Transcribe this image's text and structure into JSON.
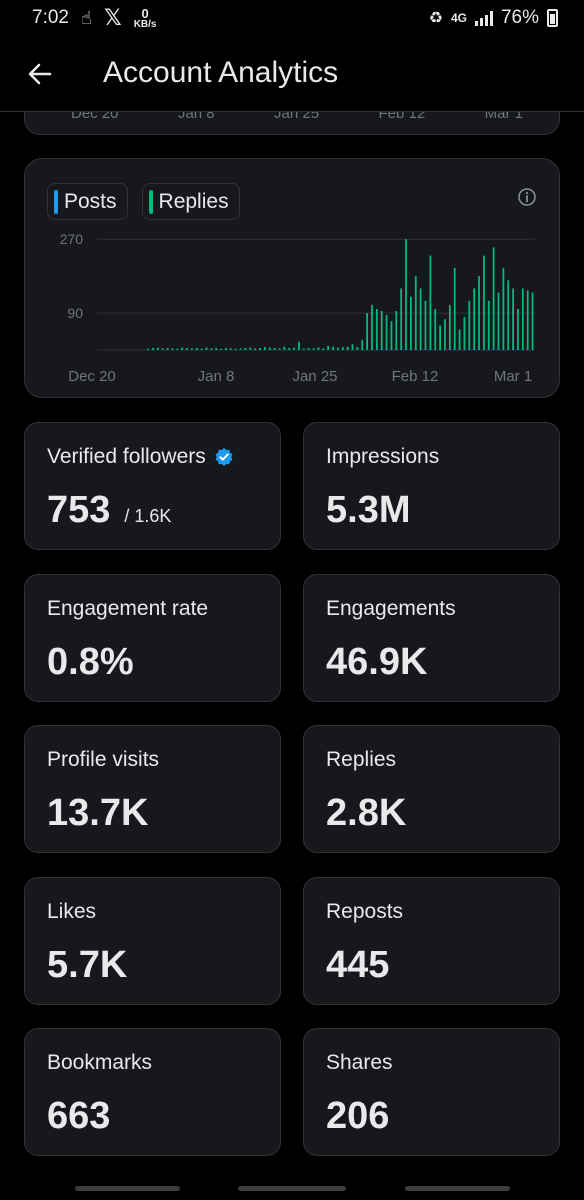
{
  "status": {
    "time": "7:02",
    "kb_value": "0",
    "kb_unit": "KB/s",
    "network": "4G",
    "battery": "76%"
  },
  "header": {
    "title": "Account Analytics"
  },
  "prev_chart": {
    "x_labels": [
      "Dec 20",
      "Jan 8",
      "Jan 25",
      "Feb 12",
      "Mar 1"
    ]
  },
  "chart_data": {
    "type": "bar",
    "legend": [
      "Posts",
      "Replies"
    ],
    "colors": {
      "posts": "#1d9bf0",
      "replies": "#00ba7c"
    },
    "x_tick_labels": [
      "Dec 20",
      "Jan 8",
      "Jan 25",
      "Feb 12",
      "Mar 1"
    ],
    "y_ticks": [
      90,
      270
    ],
    "ylim": [
      0,
      290
    ],
    "grid": true,
    "series": [
      {
        "name": "Posts",
        "values": [
          0,
          0,
          0,
          0,
          0,
          0,
          0,
          0,
          0,
          0,
          1,
          1,
          1,
          1,
          1,
          1,
          1,
          1,
          1,
          1,
          1,
          1,
          1,
          1,
          1,
          1,
          1,
          1,
          1,
          1,
          1,
          1,
          1,
          1,
          1,
          1,
          1,
          1,
          1,
          1,
          1,
          1,
          1,
          1,
          1,
          1,
          1,
          1,
          1,
          1,
          1,
          1,
          1,
          1,
          1,
          1,
          2,
          2,
          2,
          2,
          2,
          2,
          2,
          2,
          2,
          2,
          2,
          2,
          2,
          2,
          2,
          2,
          2,
          2,
          2,
          2,
          2,
          2,
          2,
          2,
          2,
          2,
          2,
          2,
          2,
          2,
          2,
          2,
          2,
          2
        ]
      },
      {
        "name": "Replies",
        "values": [
          0,
          0,
          0,
          0,
          0,
          0,
          0,
          0,
          0,
          0,
          3,
          5,
          6,
          4,
          5,
          4,
          3,
          6,
          5,
          4,
          5,
          3,
          6,
          4,
          5,
          3,
          5,
          4,
          3,
          4,
          5,
          6,
          4,
          5,
          7,
          6,
          5,
          4,
          8,
          5,
          6,
          20,
          3,
          5,
          4,
          7,
          4,
          10,
          8,
          6,
          7,
          8,
          14,
          7,
          25,
          90,
          110,
          100,
          95,
          85,
          70,
          95,
          150,
          270,
          130,
          180,
          150,
          120,
          230,
          100,
          60,
          75,
          110,
          200,
          50,
          80,
          120,
          150,
          180,
          230,
          120,
          250,
          140,
          200,
          170,
          150,
          100,
          150,
          145,
          140
        ]
      }
    ]
  },
  "stats": [
    {
      "label": "Verified followers",
      "value": "753",
      "sub": "/ 1.6K",
      "verified": true
    },
    {
      "label": "Impressions",
      "value": "5.3M"
    },
    {
      "label": "Engagement rate",
      "value": "0.8%"
    },
    {
      "label": "Engagements",
      "value": "46.9K"
    },
    {
      "label": "Profile visits",
      "value": "13.7K"
    },
    {
      "label": "Replies",
      "value": "2.8K"
    },
    {
      "label": "Likes",
      "value": "5.7K"
    },
    {
      "label": "Reposts",
      "value": "445"
    },
    {
      "label": "Bookmarks",
      "value": "663"
    },
    {
      "label": "Shares",
      "value": "206"
    }
  ]
}
